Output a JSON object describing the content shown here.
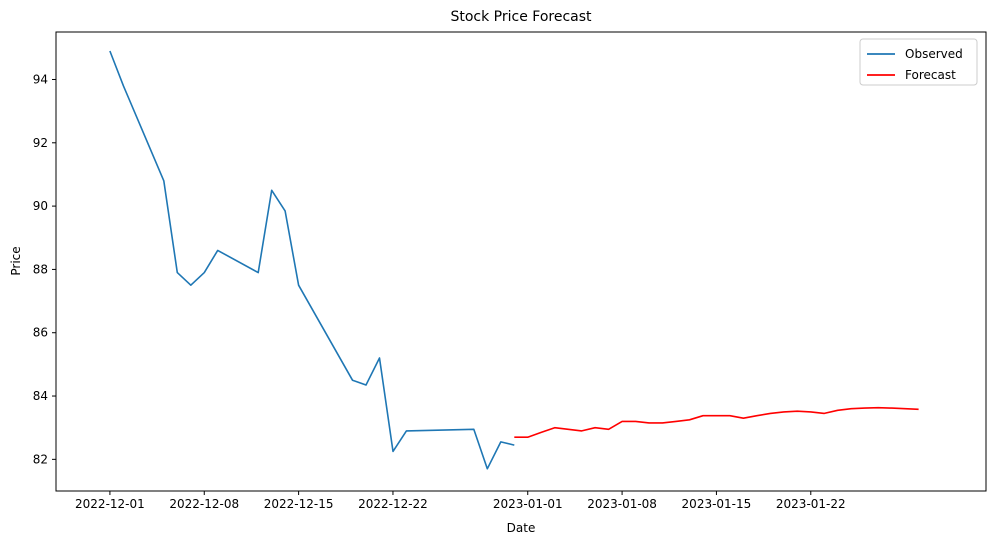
{
  "chart_data": {
    "type": "line",
    "title": "Stock Price Forecast",
    "xlabel": "Date",
    "ylabel": "Price",
    "xlim": [
      "2022-11-27",
      "2023-02-04"
    ],
    "ylim": [
      81.0,
      95.5
    ],
    "x_ticks": [
      "2022-12-01",
      "2022-12-08",
      "2022-12-15",
      "2022-12-22",
      "2023-01-01",
      "2023-01-08",
      "2023-01-15",
      "2023-01-22"
    ],
    "y_ticks": [
      82,
      84,
      86,
      88,
      90,
      92,
      94
    ],
    "grid": false,
    "legend": "top-right",
    "series": [
      {
        "name": "Observed",
        "color": "#1f77b4",
        "points": [
          [
            "2022-12-01",
            94.9
          ],
          [
            "2022-12-02",
            93.8
          ],
          [
            "2022-12-05",
            90.8
          ],
          [
            "2022-12-06",
            87.9
          ],
          [
            "2022-12-07",
            87.5
          ],
          [
            "2022-12-08",
            87.9
          ],
          [
            "2022-12-09",
            88.6
          ],
          [
            "2022-12-12",
            87.9
          ],
          [
            "2022-12-13",
            90.5
          ],
          [
            "2022-12-14",
            89.85
          ],
          [
            "2022-12-15",
            87.5
          ],
          [
            "2022-12-19",
            84.5
          ],
          [
            "2022-12-20",
            84.35
          ],
          [
            "2022-12-21",
            85.2
          ],
          [
            "2022-12-22",
            82.25
          ],
          [
            "2022-12-23",
            82.9
          ],
          [
            "2022-12-28",
            82.95
          ],
          [
            "2022-12-29",
            81.7
          ],
          [
            "2022-12-30",
            82.55
          ],
          [
            "2022-12-31",
            82.45
          ]
        ]
      },
      {
        "name": "Forecast",
        "color": "#ff0000",
        "points": [
          [
            "2022-12-31",
            82.7
          ],
          [
            "2023-01-01",
            82.7
          ],
          [
            "2023-01-02",
            82.85
          ],
          [
            "2023-01-03",
            83.0
          ],
          [
            "2023-01-04",
            82.95
          ],
          [
            "2023-01-05",
            82.9
          ],
          [
            "2023-01-06",
            83.0
          ],
          [
            "2023-01-07",
            82.95
          ],
          [
            "2023-01-08",
            83.2
          ],
          [
            "2023-01-09",
            83.2
          ],
          [
            "2023-01-10",
            83.15
          ],
          [
            "2023-01-11",
            83.15
          ],
          [
            "2023-01-12",
            83.2
          ],
          [
            "2023-01-13",
            83.25
          ],
          [
            "2023-01-14",
            83.38
          ],
          [
            "2023-01-15",
            83.38
          ],
          [
            "2023-01-16",
            83.38
          ],
          [
            "2023-01-17",
            83.3
          ],
          [
            "2023-01-18",
            83.38
          ],
          [
            "2023-01-19",
            83.45
          ],
          [
            "2023-01-20",
            83.5
          ],
          [
            "2023-01-21",
            83.52
          ],
          [
            "2023-01-22",
            83.5
          ],
          [
            "2023-01-23",
            83.45
          ],
          [
            "2023-01-24",
            83.55
          ],
          [
            "2023-01-25",
            83.6
          ],
          [
            "2023-01-26",
            83.62
          ],
          [
            "2023-01-27",
            83.63
          ],
          [
            "2023-01-28",
            83.62
          ],
          [
            "2023-01-29",
            83.6
          ],
          [
            "2023-01-30",
            83.58
          ]
        ]
      }
    ]
  }
}
